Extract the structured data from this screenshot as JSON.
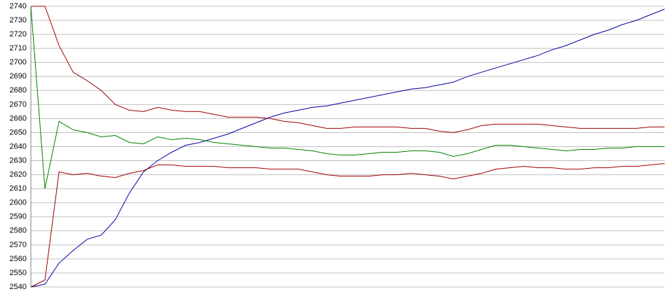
{
  "chart_data": {
    "type": "line",
    "ylim": [
      2540,
      2740
    ],
    "yticks": [
      2540,
      2550,
      2560,
      2570,
      2580,
      2590,
      2600,
      2610,
      2620,
      2630,
      2640,
      2650,
      2660,
      2670,
      2680,
      2690,
      2700,
      2710,
      2720,
      2730,
      2740
    ],
    "grid": true,
    "series": [
      {
        "color": "#0000a0",
        "values": [
          2540,
          2542,
          2557,
          2566,
          2574,
          2577,
          2588,
          2607,
          2622,
          2630,
          2636,
          2641,
          2643,
          2646,
          2649,
          2653,
          2657,
          2661,
          2664,
          2666,
          2668,
          2669,
          2671,
          2673,
          2675,
          2677,
          2679,
          2681,
          2682,
          2684,
          2686,
          2690,
          2693,
          2696,
          2699,
          2702,
          2705,
          2709,
          2712,
          2716,
          2720,
          2723,
          2727,
          2730,
          2734,
          2738
        ]
      },
      {
        "color": "#008000",
        "values": [
          2740,
          2610,
          2658,
          2652,
          2650,
          2647,
          2648,
          2643,
          2642,
          2647,
          2645,
          2646,
          2645,
          2643,
          2642,
          2641,
          2640,
          2639,
          2639,
          2638,
          2637,
          2635,
          2634,
          2634,
          2635,
          2636,
          2636,
          2637,
          2637,
          2636,
          2633,
          2635,
          2638,
          2641,
          2641,
          2640,
          2639,
          2638,
          2637,
          2638,
          2638,
          2639,
          2639,
          2640,
          2640,
          2640
        ]
      },
      {
        "color": "#a00000",
        "values": [
          2740,
          2740,
          2712,
          2693,
          2687,
          2680,
          2670,
          2666,
          2665,
          2668,
          2666,
          2665,
          2665,
          2663,
          2661,
          2661,
          2661,
          2660,
          2658,
          2657,
          2655,
          2653,
          2653,
          2654,
          2654,
          2654,
          2654,
          2653,
          2653,
          2651,
          2650,
          2652,
          2655,
          2656,
          2656,
          2656,
          2656,
          2655,
          2654,
          2653,
          2653,
          2653,
          2653,
          2653,
          2654,
          2654
        ]
      },
      {
        "color": "#a00000",
        "values": [
          2540,
          2545,
          2622,
          2620,
          2621,
          2619,
          2618,
          2621,
          2623,
          2627,
          2627,
          2626,
          2626,
          2626,
          2625,
          2625,
          2625,
          2624,
          2624,
          2624,
          2622,
          2620,
          2619,
          2619,
          2619,
          2620,
          2620,
          2621,
          2620,
          2619,
          2617,
          2619,
          2621,
          2624,
          2625,
          2626,
          2625,
          2625,
          2624,
          2624,
          2625,
          2625,
          2626,
          2626,
          2627,
          2628
        ]
      }
    ]
  }
}
